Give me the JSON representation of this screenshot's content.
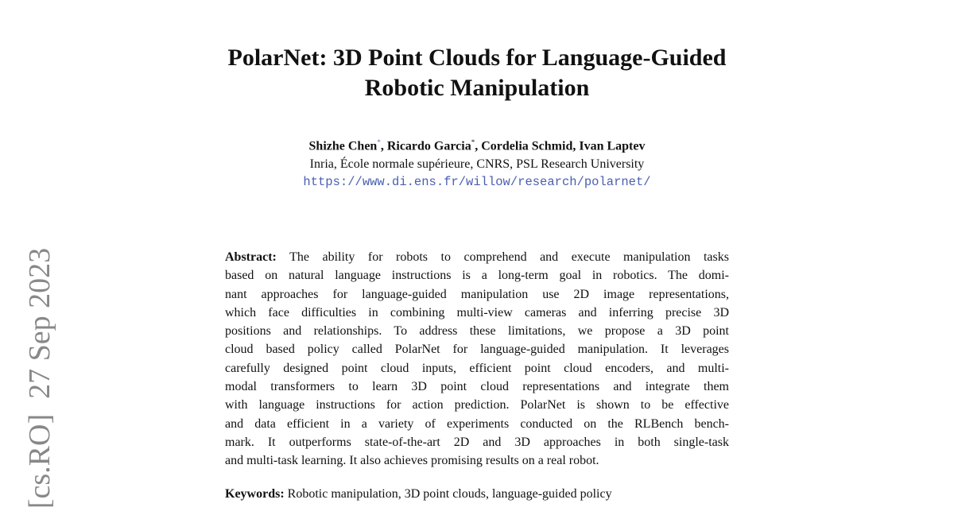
{
  "header": {
    "title_lines": [
      "PolarNet: 3D Point Clouds for Language-Guided",
      "Robotic Manipulation"
    ],
    "authors": [
      {
        "name": "Shizhe Chen",
        "mark": "*"
      },
      {
        "name": "Ricardo Garcia",
        "mark": "*"
      },
      {
        "name": "Cordelia Schmid"
      },
      {
        "name": "Ivan Laptev"
      }
    ],
    "affiliation": "Inria, École normale supérieure, CNRS, PSL Research University",
    "url": "https://www.di.ens.fr/willow/research/polarnet/"
  },
  "sidebar": "[cs.RO]  27 Sep 2023",
  "abstract": {
    "label": "Abstract:",
    "lines": [
      "The ability for robots to comprehend and execute manipulation tasks",
      "based on natural language instructions is a long-term goal in robotics. The domi-",
      "nant approaches for language-guided manipulation use 2D image representations,",
      "which face difficulties in combining multi-view cameras and inferring precise 3D",
      "positions and relationships. To address these limitations, we propose a 3D point",
      "cloud based policy called PolarNet for language-guided manipulation. It leverages",
      "carefully designed point cloud inputs, efficient point cloud encoders, and multi-",
      "modal transformers to learn 3D point cloud representations and integrate them",
      "with language instructions for action prediction. PolarNet is shown to be effective",
      "and data efficient in a variety of experiments conducted on the RLBench bench-",
      "mark. It outperforms state-of-the-art 2D and 3D approaches in both single-task",
      "and multi-task learning. It also achieves promising results on a real robot."
    ]
  },
  "keywords": {
    "label": "Keywords:",
    "text": "Robotic manipulation, 3D point clouds, language-guided policy"
  }
}
